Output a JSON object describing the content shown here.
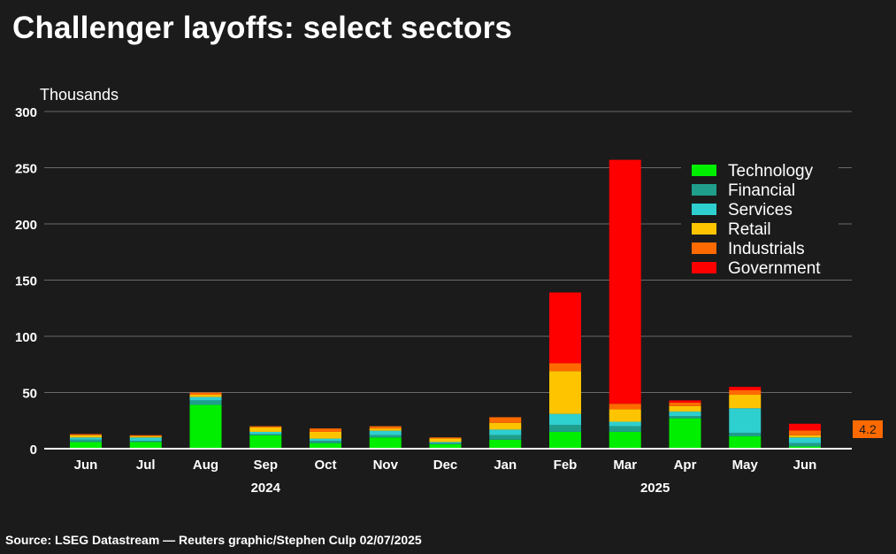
{
  "title": "Challenger layoffs: select sectors",
  "source": "Source: LSEG Datastream — Reuters graphic/Stephen Culp 02/07/2025",
  "chart_data": {
    "type": "bar",
    "stacked": true,
    "title": "Challenger layoffs: select sectors",
    "ylabel": "Thousands",
    "ylim": [
      0,
      300
    ],
    "yticks": [
      0,
      50,
      100,
      150,
      200,
      250,
      300
    ],
    "grid": true,
    "legend_position": "top-right",
    "categories": [
      "Jun",
      "Jul",
      "Aug",
      "Sep",
      "Oct",
      "Nov",
      "Dec",
      "Jan",
      "Feb",
      "Mar",
      "Apr",
      "May",
      "Jun"
    ],
    "year_labels": [
      {
        "label": "2024",
        "category_index": 3
      },
      {
        "label": "2025",
        "category_index": 9.5
      }
    ],
    "last_value_label": "4.2",
    "series": [
      {
        "name": "Technology",
        "color": "#00ee00",
        "values": [
          6,
          6,
          39,
          12,
          5,
          10,
          4,
          8,
          15,
          15,
          27,
          11,
          2
        ]
      },
      {
        "name": "Financial",
        "color": "#1f9e8c",
        "values": [
          2,
          1,
          4,
          1,
          2,
          2,
          1,
          4,
          6,
          5,
          2,
          3,
          3
        ]
      },
      {
        "name": "Services",
        "color": "#2ecfcf",
        "values": [
          2,
          3,
          3,
          2,
          2,
          4,
          1,
          5,
          10,
          4,
          4,
          22,
          5
        ]
      },
      {
        "name": "Retail",
        "color": "#ffc400",
        "values": [
          2,
          1,
          2,
          4,
          6,
          2,
          3,
          6,
          38,
          11,
          5,
          12,
          2
        ]
      },
      {
        "name": "Industrials",
        "color": "#ff6a00",
        "values": [
          1,
          1,
          2,
          1,
          3,
          2,
          1,
          5,
          7,
          5,
          3,
          4,
          4.2
        ]
      },
      {
        "name": "Government",
        "color": "#ff0000",
        "values": [
          0,
          0,
          0,
          0,
          0,
          0,
          0,
          0,
          63,
          217,
          2,
          3,
          6
        ]
      }
    ]
  }
}
